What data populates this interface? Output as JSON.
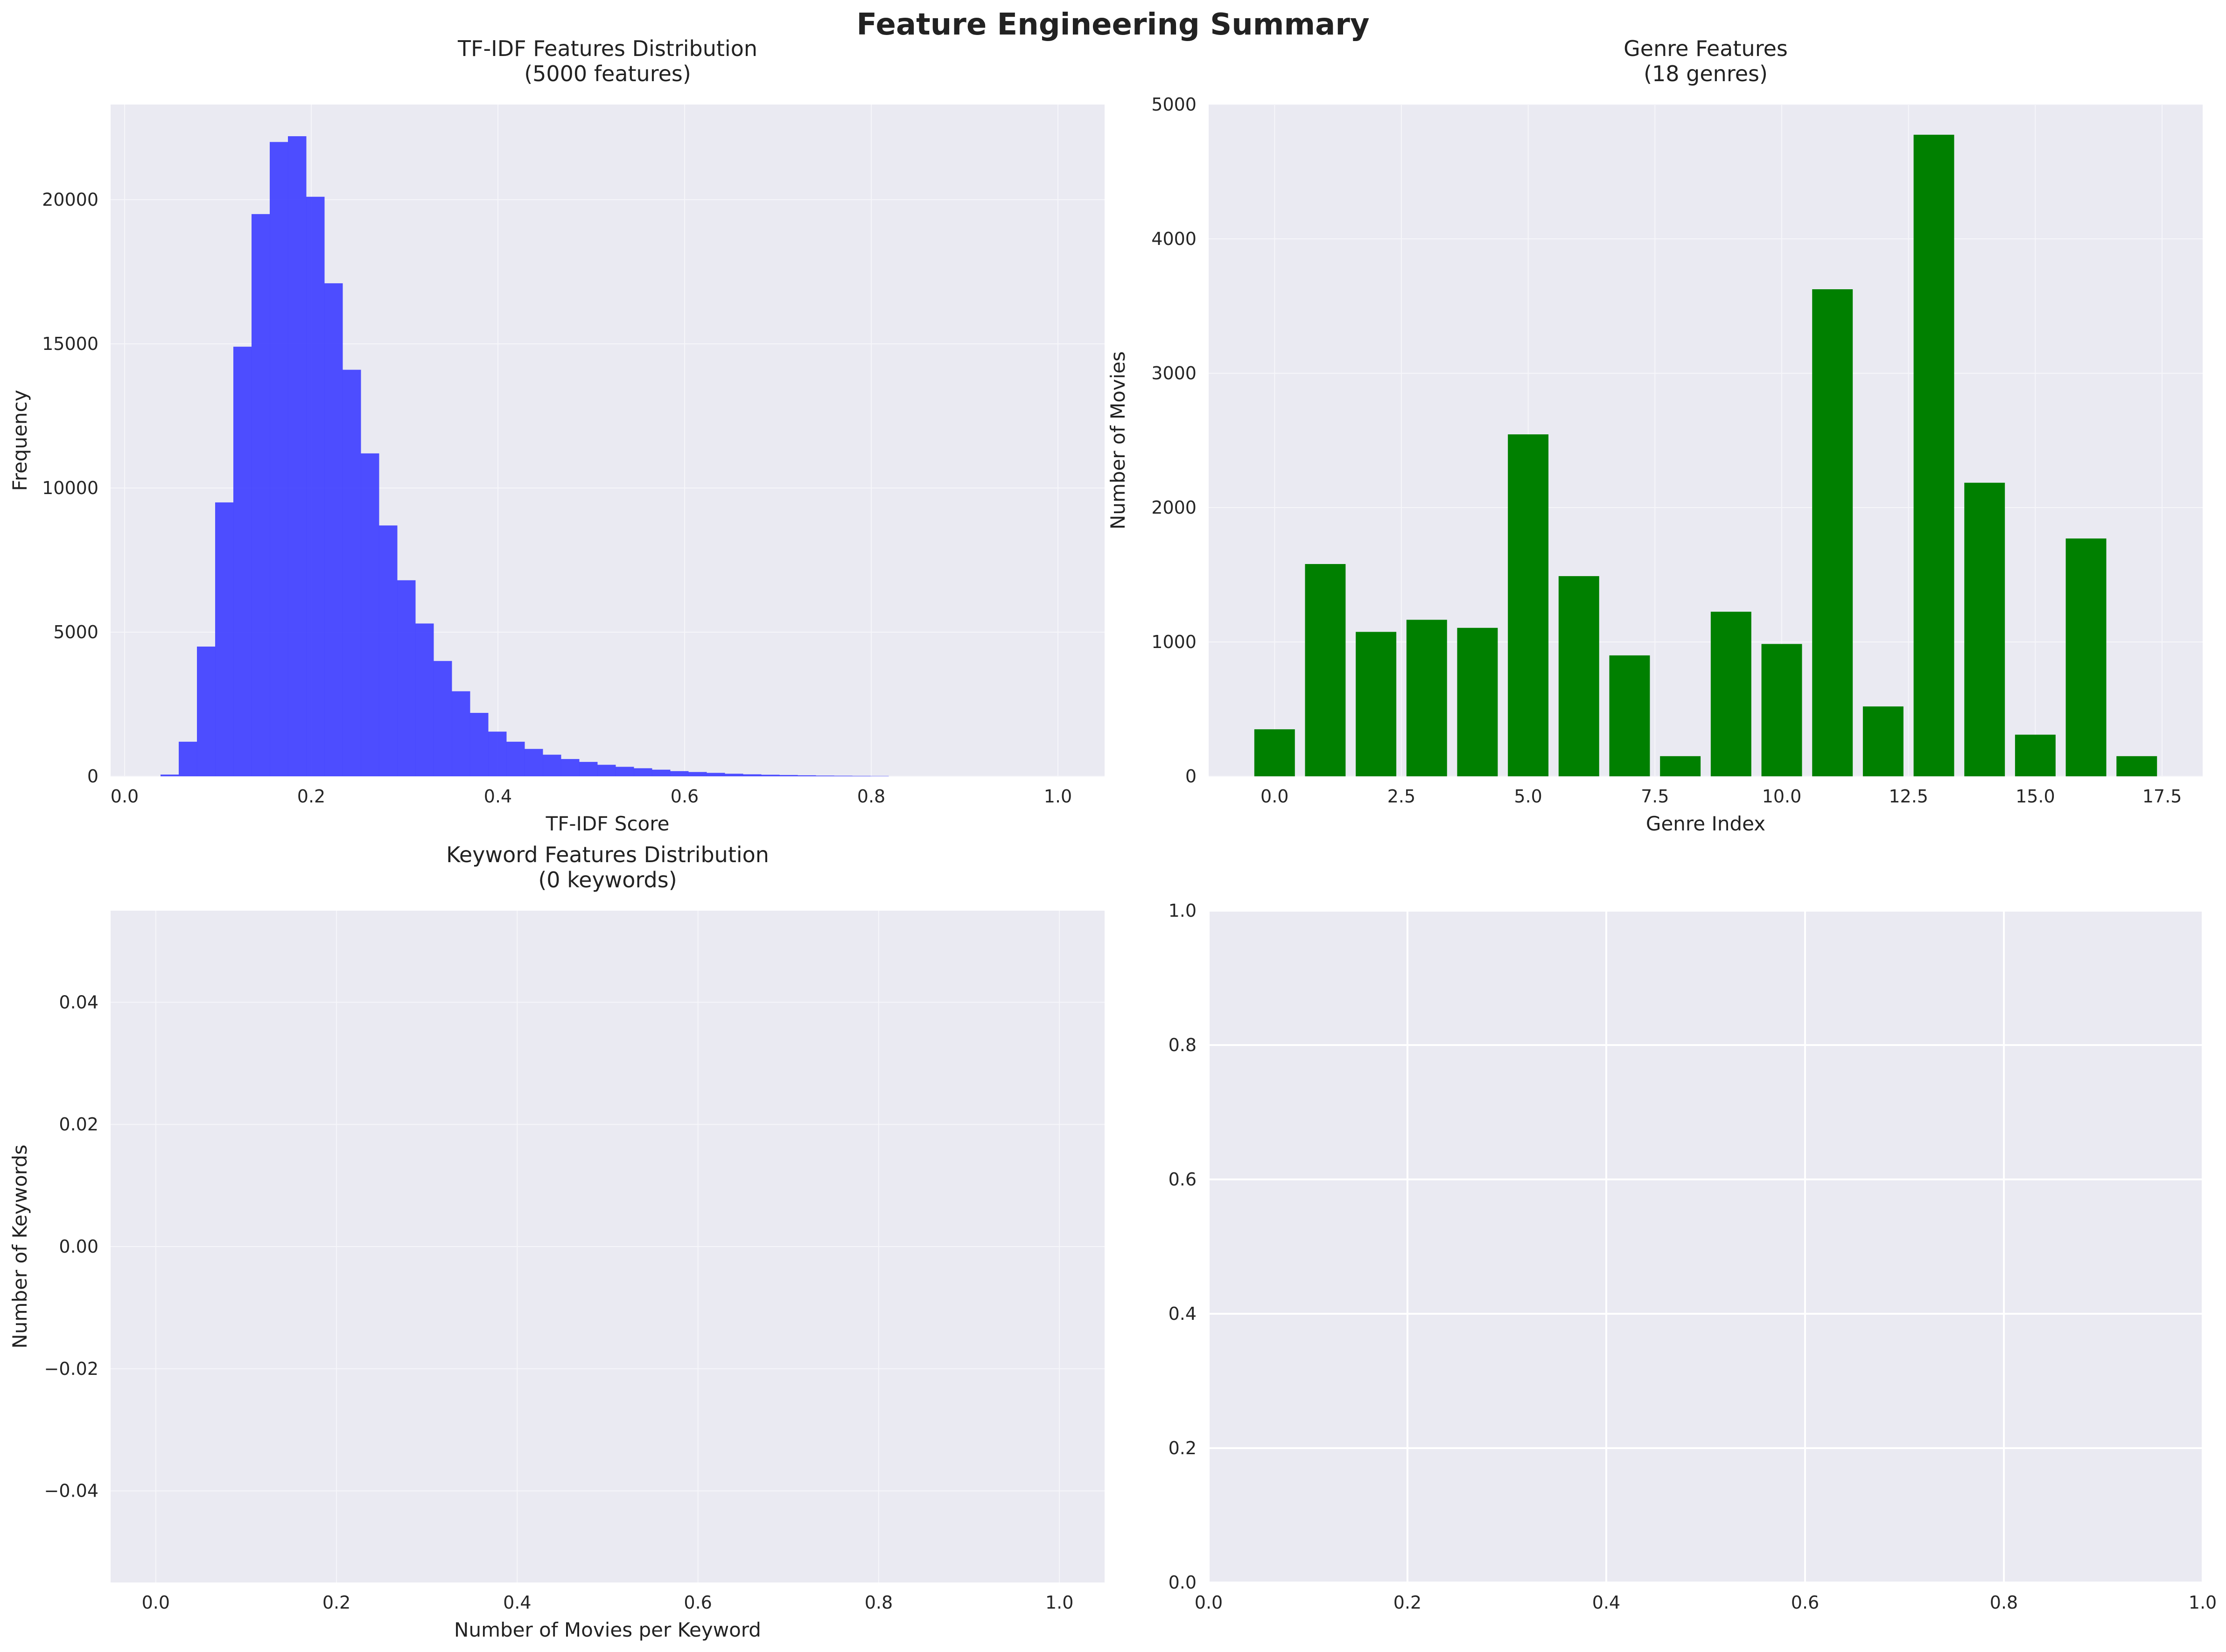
{
  "figure": {
    "suptitle": "Feature Engineering Summary"
  },
  "chart_data": [
    {
      "id": "tfidf",
      "type": "bar",
      "title_lines": [
        "TF-IDF Features Distribution",
        "(5000 features)"
      ],
      "xlabel": "TF-IDF Score",
      "ylabel": "Frequency",
      "xlim": [
        -0.015,
        1.05
      ],
      "ylim": [
        0,
        23300
      ],
      "xticks": [
        0.0,
        0.2,
        0.4,
        0.6,
        0.8,
        1.0
      ],
      "xtick_labels": [
        "0.0",
        "0.2",
        "0.4",
        "0.6",
        "0.8",
        "1.0"
      ],
      "yticks": [
        0,
        5000,
        10000,
        15000,
        20000
      ],
      "ytick_labels": [
        "0",
        "5000",
        "10000",
        "15000",
        "20000"
      ],
      "grid": true,
      "color": "#4444ff",
      "bin_start": 0.0385,
      "bin_width": 0.0195,
      "values": [
        60,
        1200,
        4500,
        9500,
        14900,
        19500,
        22000,
        22200,
        20100,
        17100,
        14100,
        11200,
        8700,
        6800,
        5300,
        4000,
        2950,
        2200,
        1550,
        1200,
        950,
        750,
        600,
        500,
        400,
        330,
        280,
        230,
        180,
        150,
        120,
        90,
        70,
        55,
        45,
        35,
        25,
        20,
        15,
        10
      ]
    },
    {
      "id": "genre",
      "type": "bar",
      "title_lines": [
        "Genre Features",
        "(18 genres)"
      ],
      "xlabel": "Genre Index",
      "ylabel": "Number of Movies",
      "xlim": [
        -1.3,
        18.3
      ],
      "ylim": [
        0,
        5000
      ],
      "xticks": [
        0,
        2.5,
        5,
        7.5,
        10,
        12.5,
        15,
        17.5
      ],
      "xtick_labels": [
        "0.0",
        "2.5",
        "5.0",
        "7.5",
        "10.0",
        "12.5",
        "15.0",
        "17.5"
      ],
      "yticks": [
        0,
        1000,
        2000,
        3000,
        4000,
        5000
      ],
      "ytick_labels": [
        "0",
        "1000",
        "2000",
        "3000",
        "4000",
        "5000"
      ],
      "grid": true,
      "color": "#008000",
      "categories": [
        0,
        1,
        2,
        3,
        4,
        5,
        6,
        7,
        8,
        9,
        10,
        11,
        12,
        13,
        14,
        15,
        16,
        17
      ],
      "values": [
        350,
        1580,
        1075,
        1165,
        1105,
        2545,
        1490,
        900,
        150,
        1225,
        985,
        3625,
        520,
        4775,
        2185,
        310,
        1770,
        150
      ]
    },
    {
      "id": "keyword",
      "type": "bar",
      "title_lines": [
        "Keyword Features Distribution",
        "(0 keywords)"
      ],
      "xlabel": "Number of Movies per Keyword",
      "ylabel": "Number of Keywords",
      "xlim": [
        -0.05,
        1.05
      ],
      "ylim": [
        -0.055,
        0.055
      ],
      "xticks": [
        0.0,
        0.2,
        0.4,
        0.6,
        0.8,
        1.0
      ],
      "xtick_labels": [
        "0.0",
        "0.2",
        "0.4",
        "0.6",
        "0.8",
        "1.0"
      ],
      "yticks": [
        -0.04,
        -0.02,
        0.0,
        0.02,
        0.04
      ],
      "ytick_labels": [
        "−0.04",
        "−0.02",
        "0.00",
        "0.02",
        "0.04"
      ],
      "grid": true,
      "values": []
    },
    {
      "id": "empty",
      "type": "line",
      "title_lines": [],
      "xlabel": "",
      "ylabel": "",
      "xlim": [
        0,
        1
      ],
      "ylim": [
        0,
        1
      ],
      "xticks": [
        0.0,
        0.2,
        0.4,
        0.6,
        0.8,
        1.0
      ],
      "xtick_labels": [
        "0.0",
        "0.2",
        "0.4",
        "0.6",
        "0.8",
        "1.0"
      ],
      "yticks": [
        0.0,
        0.2,
        0.4,
        0.6,
        0.8,
        1.0
      ],
      "ytick_labels": [
        "0.0",
        "0.2",
        "0.4",
        "0.6",
        "0.8",
        "1.0"
      ],
      "grid": true,
      "values": []
    }
  ]
}
